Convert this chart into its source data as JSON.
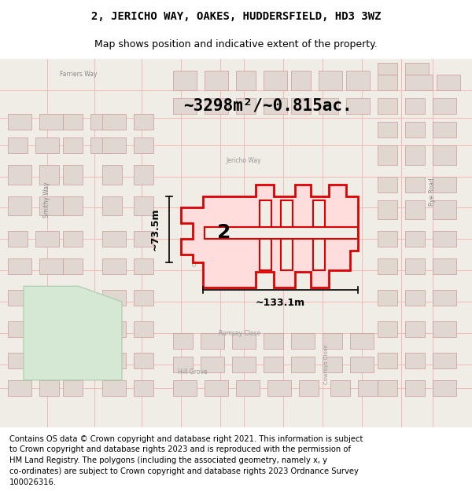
{
  "title_line1": "2, JERICHO WAY, OAKES, HUDDERSFIELD, HD3 3WZ",
  "title_line2": "Map shows position and indicative extent of the property.",
  "area_text": "~3298m²/~0.815ac.",
  "width_label": "~133.1m",
  "height_label": "~73.5m",
  "property_number": "2",
  "footer_text": "Contains OS data © Crown copyright and database right 2021. This information is subject to Crown copyright and database rights 2023 and is reproduced with the permission of HM Land Registry. The polygons (including the associated geometry, namely x, y co-ordinates) are subject to Crown copyright and database rights 2023 Ordnance Survey 100026316.",
  "bg_color": "#f5f0eb",
  "map_bg": "#f0ece6",
  "red_color": "#dd0000",
  "light_red": "#f5b8b8",
  "gray_color": "#cccccc",
  "dark_gray": "#999999",
  "green_area": "#d4e8d4",
  "title_fontsize": 10,
  "subtitle_fontsize": 9,
  "footer_fontsize": 7.5
}
